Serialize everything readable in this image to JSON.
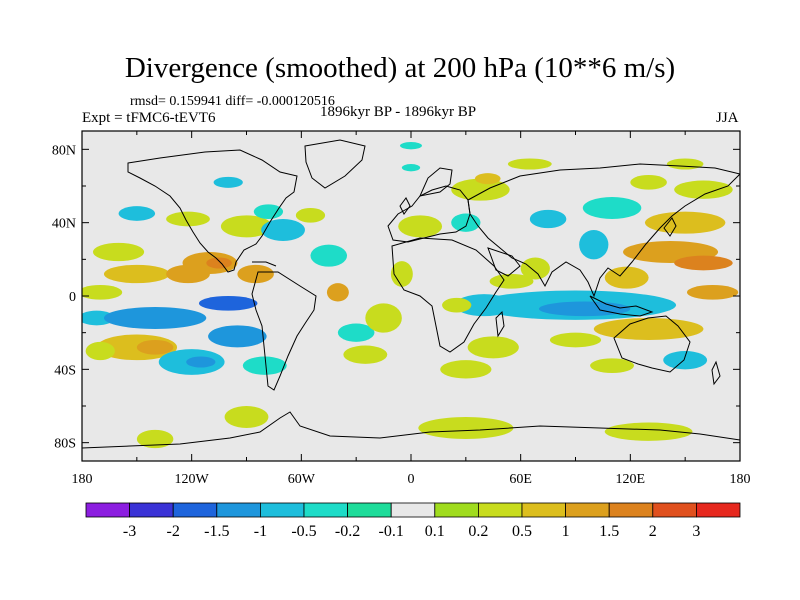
{
  "title": "Divergence (smoothed) at 200 hPa (10**6 m/s)",
  "stats": "rmsd= 0.159941 diff= -0.000120516",
  "experiment": "Expt = tFMC6-tEVT6",
  "period": "1896kyr BP - 1896kyr BP",
  "season": "JJA",
  "map": {
    "lat_ticks": [
      "80N",
      "40N",
      "0",
      "40S",
      "80S"
    ],
    "lat_values": [
      80,
      40,
      0,
      -40,
      -80
    ],
    "lon_ticks": [
      "180",
      "120W",
      "60W",
      "0",
      "60E",
      "120E",
      "180"
    ],
    "lon_values": [
      -180,
      -120,
      -60,
      0,
      60,
      120,
      180
    ],
    "lon_range": [
      -180,
      180
    ],
    "lat_range": [
      -90,
      90
    ],
    "background_color": "#e8e8e8"
  },
  "colorbar": {
    "colors": [
      "#8c1ee0",
      "#3a32d6",
      "#1e64dc",
      "#1e96dc",
      "#1ebedc",
      "#1edcc8",
      "#1edc9a",
      "#e8e8e8",
      "#a0dc1e",
      "#c8dc1e",
      "#dcbe1e",
      "#dca01e",
      "#dc821e",
      "#e0501e",
      "#e6281e"
    ],
    "labels": [
      "-3",
      "-2",
      "-1.5",
      "-1",
      "-0.5",
      "-0.2",
      "-0.1",
      "0.1",
      "0.2",
      "0.5",
      "1",
      "1.5",
      "2",
      "3"
    ]
  },
  "field_patches": [
    {
      "lon": -160,
      "lat": 24,
      "rx": 14,
      "ry": 5,
      "level": 9
    },
    {
      "lon": -150,
      "lat": 12,
      "rx": 18,
      "ry": 5,
      "level": 10
    },
    {
      "lon": -122,
      "lat": 12,
      "rx": 12,
      "ry": 5,
      "level": 11
    },
    {
      "lon": -110,
      "lat": 18,
      "rx": 15,
      "ry": 6,
      "level": 11
    },
    {
      "lon": -105,
      "lat": 18,
      "rx": 7,
      "ry": 3,
      "level": 12
    },
    {
      "lon": -85,
      "lat": 12,
      "rx": 10,
      "ry": 5,
      "level": 11
    },
    {
      "lon": -170,
      "lat": 2,
      "rx": 12,
      "ry": 4,
      "level": 9
    },
    {
      "lon": -172,
      "lat": -12,
      "rx": 10,
      "ry": 4,
      "level": 4
    },
    {
      "lon": -140,
      "lat": -12,
      "rx": 28,
      "ry": 6,
      "level": 3
    },
    {
      "lon": -100,
      "lat": -4,
      "rx": 16,
      "ry": 4,
      "level": 2
    },
    {
      "lon": -95,
      "lat": -22,
      "rx": 16,
      "ry": 6,
      "level": 3
    },
    {
      "lon": -150,
      "lat": -28,
      "rx": 22,
      "ry": 7,
      "level": 10
    },
    {
      "lon": -140,
      "lat": -28,
      "rx": 10,
      "ry": 4,
      "level": 11
    },
    {
      "lon": -120,
      "lat": -36,
      "rx": 18,
      "ry": 7,
      "level": 4
    },
    {
      "lon": -115,
      "lat": -36,
      "rx": 8,
      "ry": 3,
      "level": 3
    },
    {
      "lon": -170,
      "lat": -30,
      "rx": 8,
      "ry": 5,
      "level": 9
    },
    {
      "lon": -80,
      "lat": -38,
      "rx": 12,
      "ry": 5,
      "level": 5
    },
    {
      "lon": -150,
      "lat": 45,
      "rx": 10,
      "ry": 4,
      "level": 4
    },
    {
      "lon": -122,
      "lat": 42,
      "rx": 12,
      "ry": 4,
      "level": 9
    },
    {
      "lon": -90,
      "lat": 38,
      "rx": 14,
      "ry": 6,
      "level": 9
    },
    {
      "lon": -70,
      "lat": 36,
      "rx": 12,
      "ry": 6,
      "level": 4
    },
    {
      "lon": -78,
      "lat": 46,
      "rx": 8,
      "ry": 4,
      "level": 5
    },
    {
      "lon": -100,
      "lat": 62,
      "rx": 8,
      "ry": 3,
      "level": 4
    },
    {
      "lon": -55,
      "lat": 44,
      "rx": 8,
      "ry": 4,
      "level": 9
    },
    {
      "lon": -45,
      "lat": 22,
      "rx": 10,
      "ry": 6,
      "level": 5
    },
    {
      "lon": -40,
      "lat": 2,
      "rx": 6,
      "ry": 5,
      "level": 11
    },
    {
      "lon": -30,
      "lat": -20,
      "rx": 10,
      "ry": 5,
      "level": 5
    },
    {
      "lon": -25,
      "lat": -32,
      "rx": 12,
      "ry": 5,
      "level": 9
    },
    {
      "lon": -15,
      "lat": -12,
      "rx": 10,
      "ry": 8,
      "level": 9
    },
    {
      "lon": -5,
      "lat": 12,
      "rx": 6,
      "ry": 7,
      "level": 9
    },
    {
      "lon": 5,
      "lat": 38,
      "rx": 12,
      "ry": 6,
      "level": 9
    },
    {
      "lon": 0,
      "lat": 70,
      "rx": 5,
      "ry": 2,
      "level": 5
    },
    {
      "lon": 38,
      "lat": 58,
      "rx": 16,
      "ry": 6,
      "level": 9
    },
    {
      "lon": 42,
      "lat": 64,
      "rx": 7,
      "ry": 3,
      "level": 10
    },
    {
      "lon": 65,
      "lat": 72,
      "rx": 12,
      "ry": 3,
      "level": 9
    },
    {
      "lon": 75,
      "lat": 42,
      "rx": 10,
      "ry": 5,
      "level": 4
    },
    {
      "lon": 30,
      "lat": 40,
      "rx": 8,
      "ry": 5,
      "level": 5
    },
    {
      "lon": 68,
      "lat": 15,
      "rx": 8,
      "ry": 6,
      "level": 9
    },
    {
      "lon": 110,
      "lat": 48,
      "rx": 16,
      "ry": 6,
      "level": 5
    },
    {
      "lon": 130,
      "lat": 62,
      "rx": 10,
      "ry": 4,
      "level": 9
    },
    {
      "lon": 150,
      "lat": 72,
      "rx": 10,
      "ry": 3,
      "level": 9
    },
    {
      "lon": 160,
      "lat": 58,
      "rx": 16,
      "ry": 5,
      "level": 9
    },
    {
      "lon": 150,
      "lat": 40,
      "rx": 22,
      "ry": 6,
      "level": 10
    },
    {
      "lon": 142,
      "lat": 24,
      "rx": 26,
      "ry": 6,
      "level": 11
    },
    {
      "lon": 160,
      "lat": 18,
      "rx": 16,
      "ry": 4,
      "level": 12
    },
    {
      "lon": 118,
      "lat": 10,
      "rx": 12,
      "ry": 6,
      "level": 10
    },
    {
      "lon": 100,
      "lat": 28,
      "rx": 8,
      "ry": 8,
      "level": 4
    },
    {
      "lon": 165,
      "lat": 2,
      "rx": 14,
      "ry": 4,
      "level": 11
    },
    {
      "lon": 90,
      "lat": -5,
      "rx": 55,
      "ry": 8,
      "level": 4
    },
    {
      "lon": 95,
      "lat": -7,
      "rx": 25,
      "ry": 4,
      "level": 3
    },
    {
      "lon": 40,
      "lat": -5,
      "rx": 16,
      "ry": 6,
      "level": 4
    },
    {
      "lon": 25,
      "lat": -5,
      "rx": 8,
      "ry": 4,
      "level": 9
    },
    {
      "lon": 55,
      "lat": 8,
      "rx": 12,
      "ry": 4,
      "level": 9
    },
    {
      "lon": 130,
      "lat": -18,
      "rx": 30,
      "ry": 6,
      "level": 10
    },
    {
      "lon": 90,
      "lat": -24,
      "rx": 14,
      "ry": 4,
      "level": 9
    },
    {
      "lon": 45,
      "lat": -28,
      "rx": 14,
      "ry": 6,
      "level": 9
    },
    {
      "lon": 30,
      "lat": -40,
      "rx": 14,
      "ry": 5,
      "level": 9
    },
    {
      "lon": 110,
      "lat": -38,
      "rx": 12,
      "ry": 4,
      "level": 9
    },
    {
      "lon": 150,
      "lat": -35,
      "rx": 12,
      "ry": 5,
      "level": 4
    },
    {
      "lon": 30,
      "lat": -72,
      "rx": 26,
      "ry": 6,
      "level": 9
    },
    {
      "lon": 130,
      "lat": -74,
      "rx": 24,
      "ry": 5,
      "level": 9
    },
    {
      "lon": -90,
      "lat": -66,
      "rx": 12,
      "ry": 6,
      "level": 9
    },
    {
      "lon": -140,
      "lat": -78,
      "rx": 10,
      "ry": 5,
      "level": 9
    },
    {
      "lon": 0,
      "lat": 82,
      "rx": 6,
      "ry": 2,
      "level": 5
    }
  ]
}
